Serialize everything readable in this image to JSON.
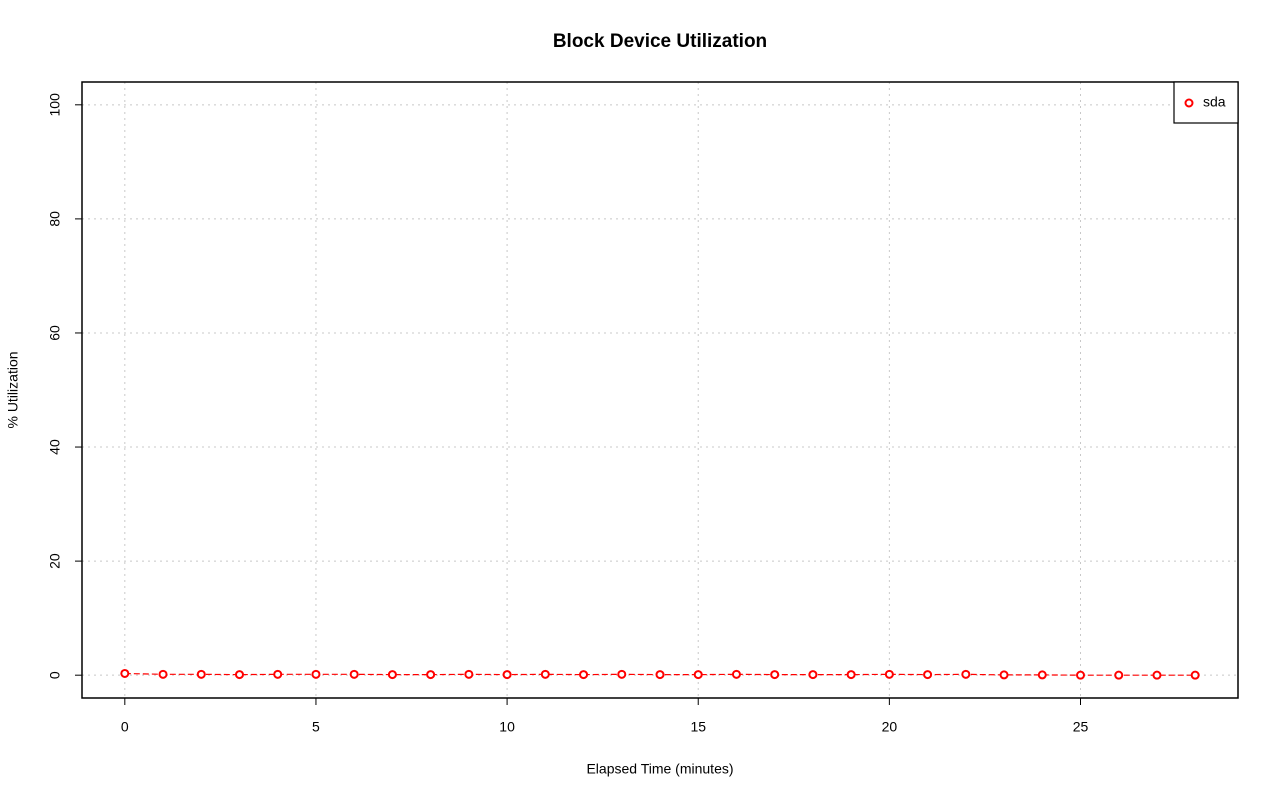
{
  "chart_data": {
    "type": "line",
    "title": "Block Device Utilization",
    "x_label": "Elapsed Time (minutes)",
    "y_label": "% Utilization",
    "x": [
      0,
      1,
      2,
      3,
      4,
      5,
      6,
      7,
      8,
      9,
      10,
      11,
      12,
      13,
      14,
      15,
      16,
      17,
      18,
      19,
      20,
      21,
      22,
      23,
      24,
      25,
      26,
      27,
      28
    ],
    "series": [
      {
        "name": "sda",
        "color": "#ff0000",
        "values": [
          0.3,
          0.15,
          0.15,
          0.1,
          0.15,
          0.15,
          0.15,
          0.1,
          0.1,
          0.15,
          0.1,
          0.15,
          0.1,
          0.15,
          0.1,
          0.1,
          0.15,
          0.1,
          0.1,
          0.1,
          0.15,
          0.1,
          0.15,
          0.05,
          0.05,
          0,
          0,
          0,
          0
        ]
      }
    ],
    "xlim": [
      -1.12,
      29.12
    ],
    "xticks": [
      0,
      5,
      10,
      15,
      20,
      25
    ],
    "ylim": [
      -4,
      104
    ],
    "yticks": [
      0,
      20,
      40,
      60,
      80,
      100
    ],
    "grid": true,
    "legend": "top-right"
  }
}
